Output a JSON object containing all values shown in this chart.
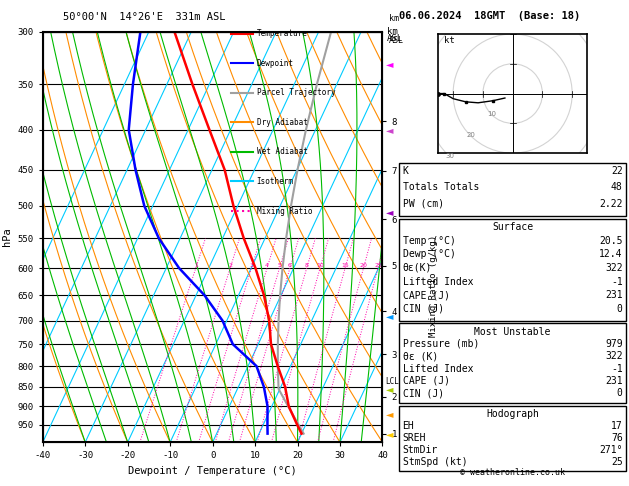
{
  "title_left": "50°00'N  14°26'E  331m ASL",
  "title_right": "06.06.2024  18GMT  (Base: 18)",
  "xlabel": "Dewpoint / Temperature (°C)",
  "ylabel_left": "hPa",
  "ylabel_right_km": "km\nASL",
  "ylabel_right_mr": "Mixing Ratio (g/kg)",
  "pressure_levels": [
    300,
    350,
    400,
    450,
    500,
    550,
    600,
    650,
    700,
    750,
    800,
    850,
    900,
    950
  ],
  "xmin": -40,
  "xmax": 40,
  "temp_color": "#ff0000",
  "dewp_color": "#0000ff",
  "parcel_color": "#a0a0a0",
  "dry_adiabat_color": "#ff8c00",
  "wet_adiabat_color": "#00bb00",
  "isotherm_color": "#00ccff",
  "mixing_ratio_color": "#ff00aa",
  "background": "#ffffff",
  "info_K": "22",
  "info_TT": "48",
  "info_PW": "2.22",
  "info_surf_temp": "20.5",
  "info_surf_dewp": "12.4",
  "info_surf_thetae": "322",
  "info_surf_LI": "-1",
  "info_surf_CAPE": "231",
  "info_surf_CIN": "0",
  "info_mu_pres": "979",
  "info_mu_thetae": "322",
  "info_mu_LI": "-1",
  "info_mu_CAPE": "231",
  "info_mu_CIN": "0",
  "info_EH": "17",
  "info_SREH": "76",
  "info_StmDir": "271°",
  "info_StmSpd": "25",
  "copyright": "© weatheronline.co.uk",
  "mixing_ratio_values": [
    1,
    2,
    3,
    4,
    5,
    6,
    8,
    10,
    15,
    20,
    25
  ],
  "km_ticks": [
    1,
    2,
    3,
    4,
    5,
    6,
    7,
    8
  ],
  "km_pressures": [
    976,
    875,
    773,
    681,
    596,
    520,
    451,
    390
  ],
  "lcl_pressure": 855,
  "legend_entries": [
    {
      "label": "Temperature",
      "color": "#ff0000",
      "style": "-"
    },
    {
      "label": "Dewpoint",
      "color": "#0000ff",
      "style": "-"
    },
    {
      "label": "Parcel Trajectory",
      "color": "#a0a0a0",
      "style": "-"
    },
    {
      "label": "Dry Adiabat",
      "color": "#ff8c00",
      "style": "-"
    },
    {
      "label": "Wet Adiabat",
      "color": "#00bb00",
      "style": "-"
    },
    {
      "label": "Isotherm",
      "color": "#00ccff",
      "style": "-"
    },
    {
      "label": "Mixing Ratio",
      "color": "#ff00aa",
      "style": ":"
    }
  ],
  "skew": 45,
  "pmin": 300,
  "pmax": 1000,
  "wind_arrows": [
    {
      "p": 330,
      "color": "#ff00ff",
      "km": 9,
      "label": ""
    },
    {
      "p": 400,
      "color": "#cc44cc",
      "km": 7,
      "label": ""
    },
    {
      "p": 510,
      "color": "#9900bb",
      "km": 6,
      "label": ""
    },
    {
      "p": 600,
      "color": "#9900bb",
      "km": 5,
      "label": ""
    },
    {
      "p": 690,
      "color": "#0099ff",
      "km": 3,
      "label": ""
    },
    {
      "p": 855,
      "color": "#aacc00",
      "km": 1,
      "label": "LCL"
    },
    {
      "p": 920,
      "color": "#ffaa00",
      "km": 0.5,
      "label": ""
    },
    {
      "p": 975,
      "color": "#ffcc00",
      "km": 0,
      "label": ""
    }
  ]
}
